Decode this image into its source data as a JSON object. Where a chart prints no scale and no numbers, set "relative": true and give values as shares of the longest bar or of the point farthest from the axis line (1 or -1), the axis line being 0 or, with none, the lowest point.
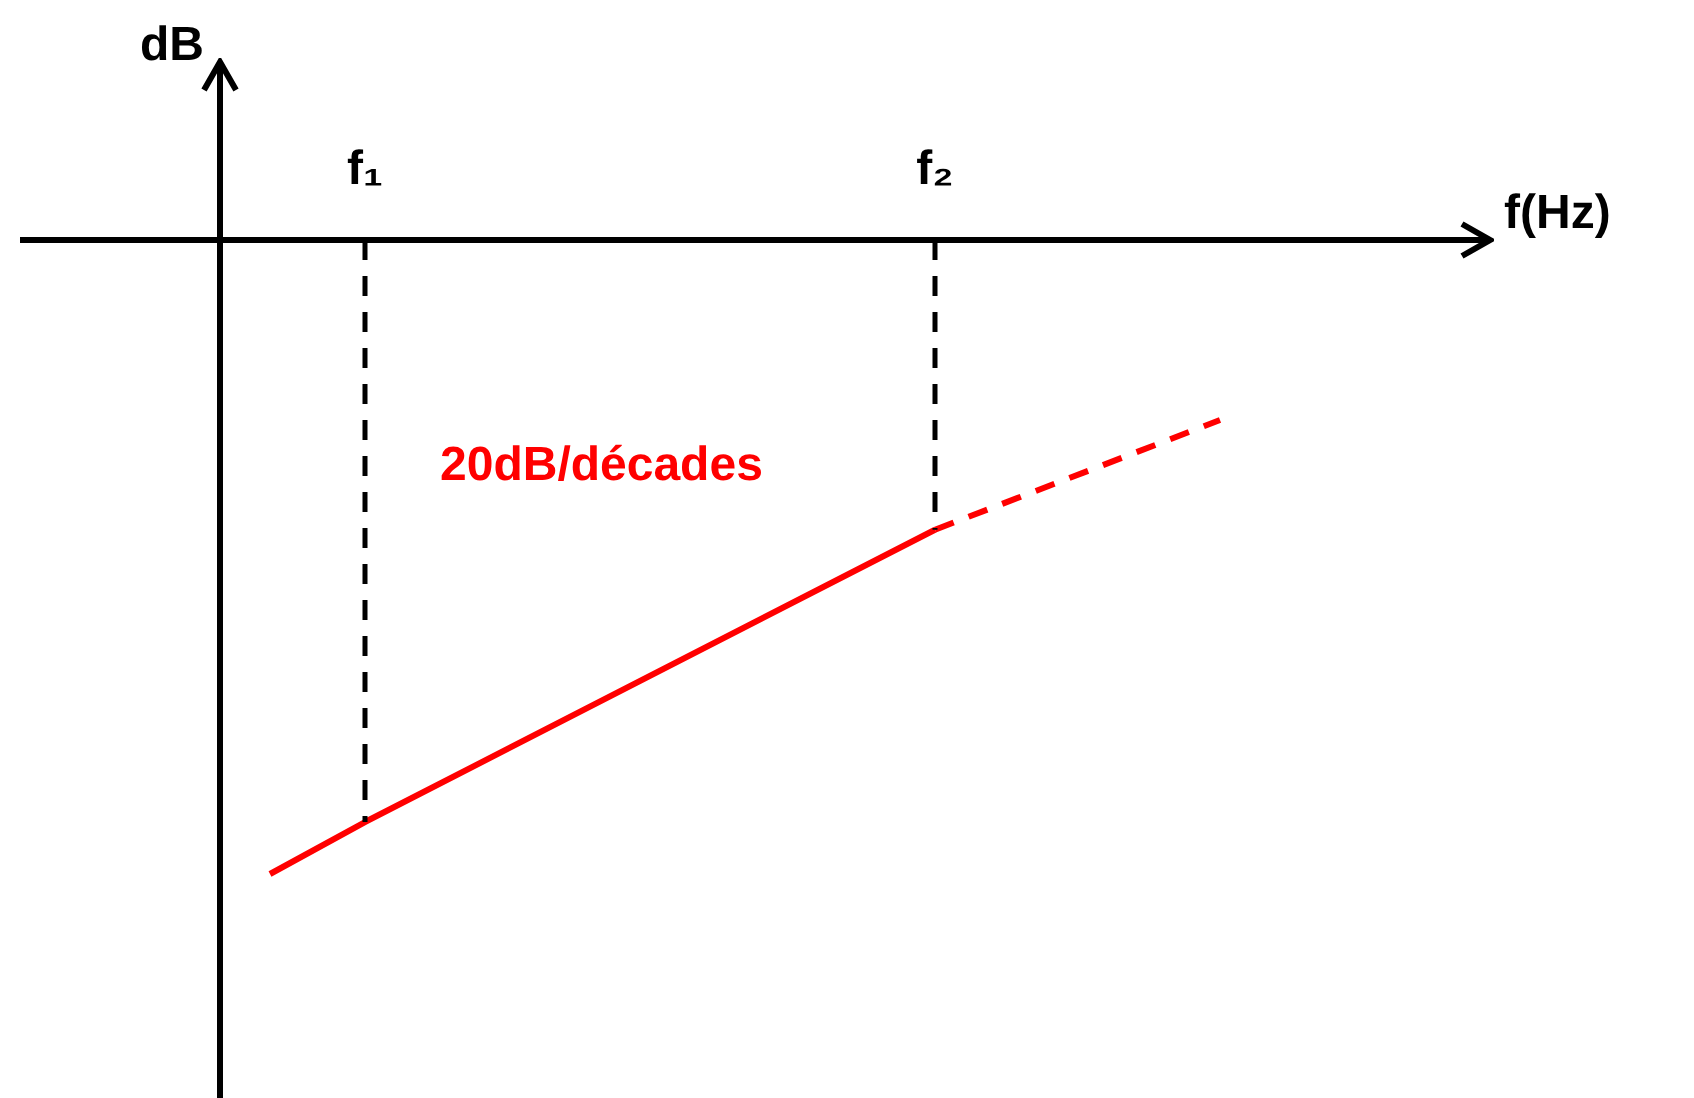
{
  "chart_data": {
    "type": "line",
    "relative": true,
    "xlabel": "f(Hz)",
    "ylabel": "dB",
    "categories": [
      null,
      "f₁",
      null,
      null,
      null,
      null,
      null,
      "f₂",
      null,
      null,
      null
    ],
    "series": [
      {
        "color": "#ff0000",
        "line_style": "solid",
        "values": [
          -1,
          -0.918,
          null,
          null,
          null,
          null,
          null,
          -0.457,
          null,
          null,
          null
        ]
      },
      {
        "color": "#ff0000",
        "line_style": "dashed",
        "values": [
          null,
          null,
          null,
          null,
          null,
          null,
          null,
          -0.457,
          null,
          null,
          -0.284
        ]
      }
    ],
    "ref_lines": [
      {
        "axis": "x",
        "value": "f₁",
        "color": "#000000",
        "line_style": "dashed"
      },
      {
        "axis": "x",
        "value": "f₂",
        "color": "#000000",
        "line_style": "dashed"
      }
    ],
    "annotations": [
      "20dB/décades"
    ],
    "marker": "none",
    "legend": false
  }
}
